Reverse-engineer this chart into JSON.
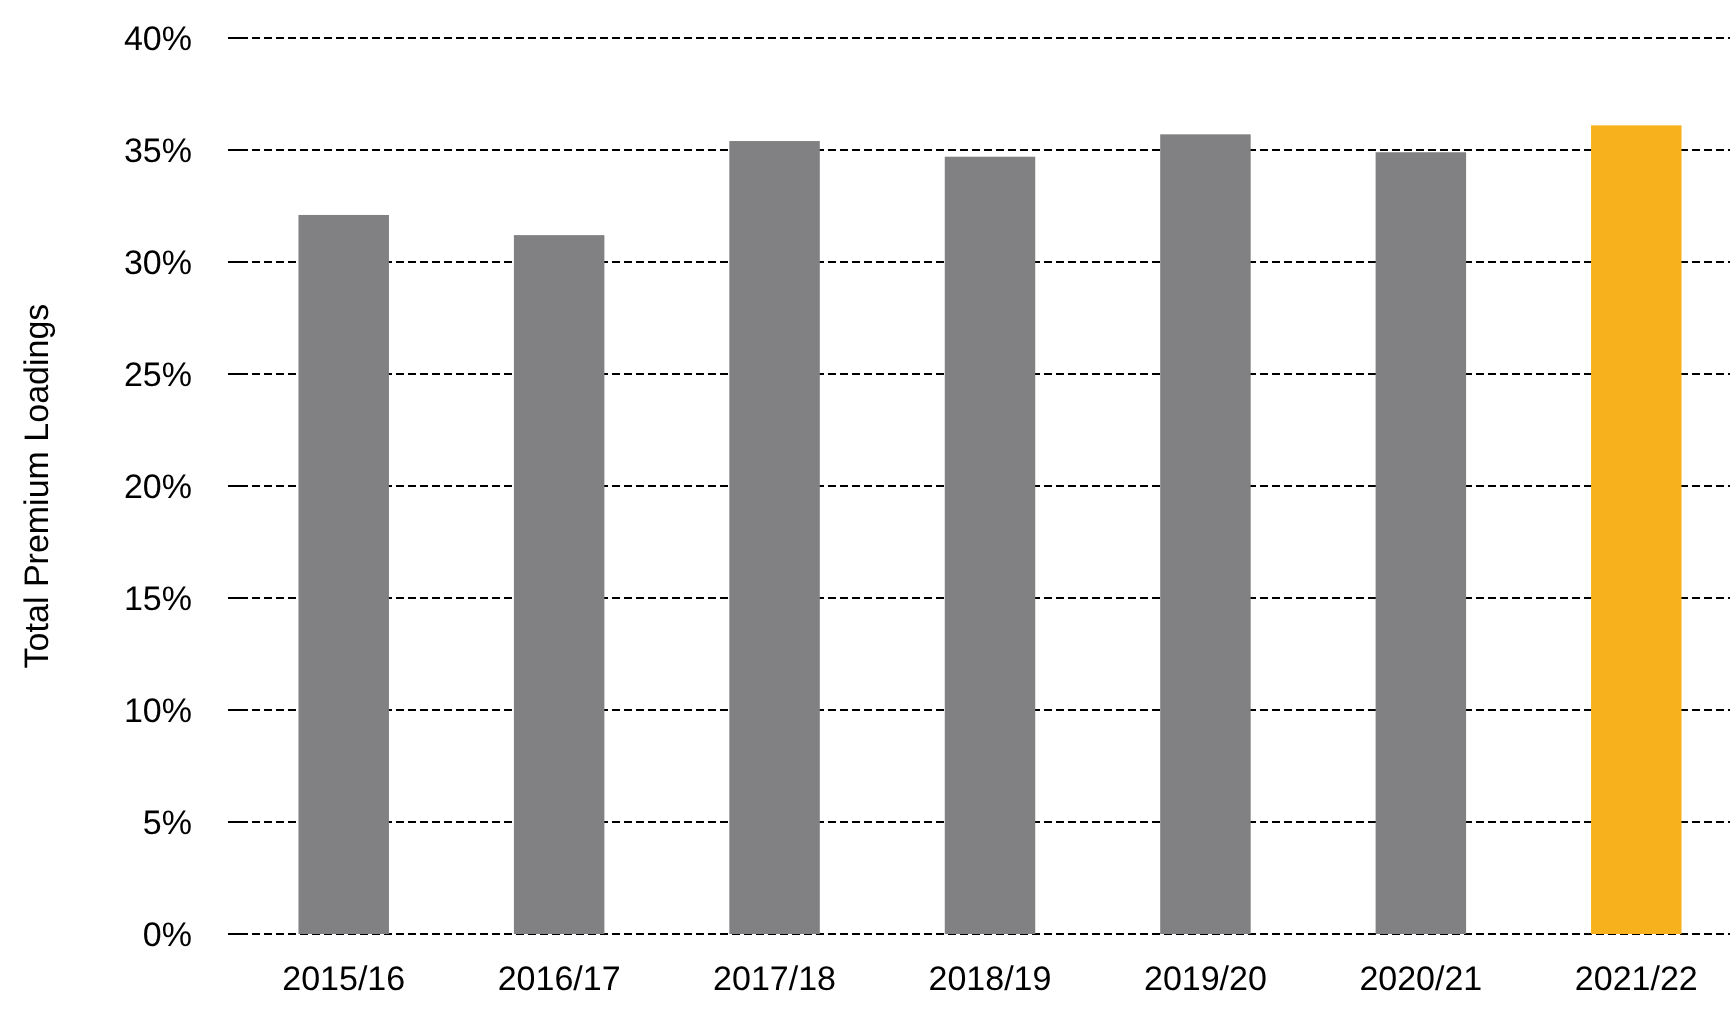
{
  "chart_data": {
    "type": "bar",
    "ylabel": "Total Premium Loadings",
    "categories": [
      "2015/16",
      "2016/17",
      "2017/18",
      "2018/19",
      "2019/20",
      "2020/21",
      "2021/22"
    ],
    "values": [
      32.1,
      31.2,
      35.4,
      34.7,
      35.7,
      34.9,
      36.1
    ],
    "colors": [
      "#818083",
      "#818083",
      "#818083",
      "#818083",
      "#818083",
      "#818083",
      "#f7b11d"
    ],
    "ylim": [
      0,
      40
    ],
    "yticks": [
      {
        "value": 0,
        "label": "0%"
      },
      {
        "value": 5,
        "label": "5%"
      },
      {
        "value": 10,
        "label": "10%"
      },
      {
        "value": 15,
        "label": "15%"
      },
      {
        "value": 20,
        "label": "20%"
      },
      {
        "value": 25,
        "label": "25%"
      },
      {
        "value": 30,
        "label": "30%"
      },
      {
        "value": 35,
        "label": "35%"
      },
      {
        "value": 40,
        "label": "40%"
      }
    ],
    "grid": "y"
  }
}
